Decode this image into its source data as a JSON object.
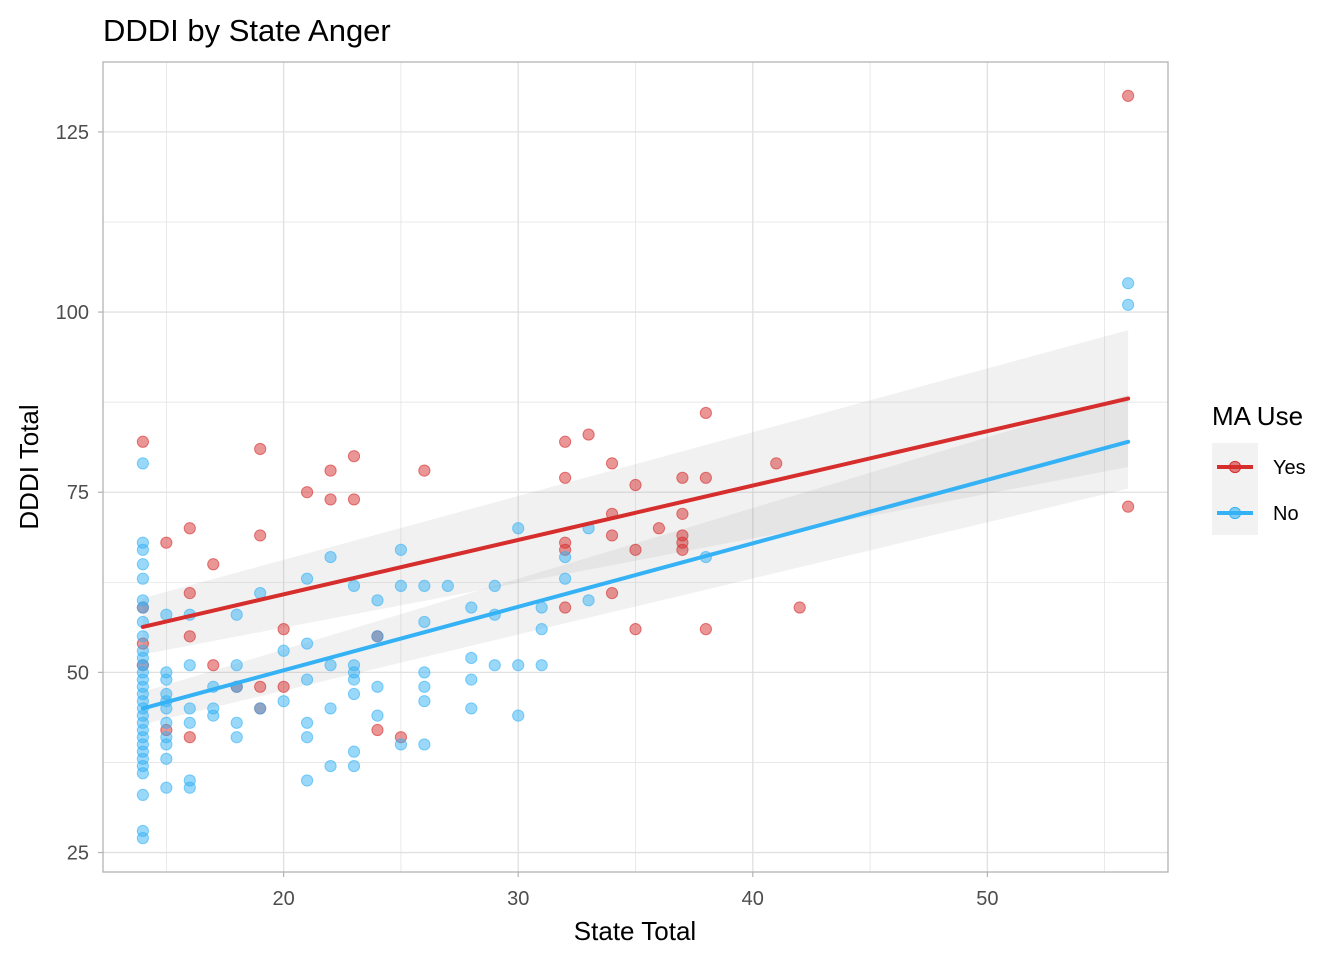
{
  "chart_data": {
    "type": "scatter",
    "title": "DDDI by State Anger",
    "xlabel": "State Total",
    "ylabel": "DDDI Total",
    "xlim": [
      12.3,
      57.7
    ],
    "ylim": [
      22.3,
      134.7
    ],
    "x_ticks": [
      20,
      30,
      40,
      50
    ],
    "y_ticks": [
      25,
      50,
      75,
      100,
      125
    ],
    "grid": true,
    "legend": {
      "title": "MA Use",
      "position": "right"
    },
    "series": [
      {
        "name": "Yes",
        "color": "#D62D2D",
        "fit_line": {
          "x": [
            14,
            56
          ],
          "y": [
            56.3,
            88.0
          ]
        },
        "ci_band": {
          "x": [
            14,
            56
          ],
          "lower": [
            52.5,
            78.5
          ],
          "upper": [
            60.3,
            97.5
          ]
        },
        "points": [
          [
            14,
            82
          ],
          [
            14,
            59
          ],
          [
            14,
            54
          ],
          [
            14,
            51
          ],
          [
            15,
            68
          ],
          [
            15,
            42
          ],
          [
            16,
            70
          ],
          [
            16,
            61
          ],
          [
            16,
            55
          ],
          [
            16,
            41
          ],
          [
            17,
            65
          ],
          [
            17,
            51
          ],
          [
            18,
            48
          ],
          [
            19,
            81
          ],
          [
            19,
            69
          ],
          [
            19,
            48
          ],
          [
            19,
            45
          ],
          [
            20,
            56
          ],
          [
            20,
            48
          ],
          [
            21,
            75
          ],
          [
            22,
            78
          ],
          [
            22,
            74
          ],
          [
            23,
            80
          ],
          [
            23,
            74
          ],
          [
            24,
            55
          ],
          [
            24,
            42
          ],
          [
            25,
            41
          ],
          [
            26,
            78
          ],
          [
            32,
            82
          ],
          [
            32,
            77
          ],
          [
            32,
            68
          ],
          [
            32,
            67
          ],
          [
            32,
            59
          ],
          [
            33,
            83
          ],
          [
            34,
            79
          ],
          [
            34,
            72
          ],
          [
            34,
            69
          ],
          [
            34,
            61
          ],
          [
            35,
            76
          ],
          [
            35,
            67
          ],
          [
            35,
            56
          ],
          [
            36,
            70
          ],
          [
            37,
            77
          ],
          [
            37,
            72
          ],
          [
            37,
            69
          ],
          [
            37,
            68
          ],
          [
            37,
            67
          ],
          [
            38,
            86
          ],
          [
            38,
            77
          ],
          [
            38,
            56
          ],
          [
            41,
            79
          ],
          [
            42,
            59
          ],
          [
            56,
            130
          ],
          [
            56,
            73
          ]
        ]
      },
      {
        "name": "No",
        "color": "#35B2F5",
        "fit_line": {
          "x": [
            14,
            56
          ],
          "y": [
            45.0,
            82.0
          ]
        },
        "ci_band": {
          "x": [
            14,
            56
          ],
          "lower": [
            42.8,
            75.5
          ],
          "upper": [
            47.3,
            88.5
          ]
        },
        "points": [
          [
            14,
            79
          ],
          [
            14,
            68
          ],
          [
            14,
            67
          ],
          [
            14,
            65
          ],
          [
            14,
            63
          ],
          [
            14,
            60
          ],
          [
            14,
            59
          ],
          [
            14,
            57
          ],
          [
            14,
            55
          ],
          [
            14,
            53
          ],
          [
            14,
            52
          ],
          [
            14,
            51
          ],
          [
            14,
            50
          ],
          [
            14,
            49
          ],
          [
            14,
            48
          ],
          [
            14,
            47
          ],
          [
            14,
            46
          ],
          [
            14,
            45
          ],
          [
            14,
            44
          ],
          [
            14,
            43
          ],
          [
            14,
            42
          ],
          [
            14,
            41
          ],
          [
            14,
            40
          ],
          [
            14,
            39
          ],
          [
            14,
            38
          ],
          [
            14,
            37
          ],
          [
            14,
            36
          ],
          [
            14,
            33
          ],
          [
            14,
            28
          ],
          [
            14,
            27
          ],
          [
            15,
            58
          ],
          [
            15,
            50
          ],
          [
            15,
            49
          ],
          [
            15,
            47
          ],
          [
            15,
            46
          ],
          [
            15,
            45
          ],
          [
            15,
            43
          ],
          [
            15,
            41
          ],
          [
            15,
            40
          ],
          [
            15,
            38
          ],
          [
            15,
            34
          ],
          [
            16,
            58
          ],
          [
            16,
            51
          ],
          [
            16,
            45
          ],
          [
            16,
            43
          ],
          [
            16,
            35
          ],
          [
            16,
            34
          ],
          [
            17,
            48
          ],
          [
            17,
            45
          ],
          [
            17,
            44
          ],
          [
            18,
            58
          ],
          [
            18,
            51
          ],
          [
            18,
            48
          ],
          [
            18,
            43
          ],
          [
            18,
            41
          ],
          [
            19,
            61
          ],
          [
            19,
            45
          ],
          [
            20,
            53
          ],
          [
            20,
            46
          ],
          [
            21,
            63
          ],
          [
            21,
            54
          ],
          [
            21,
            49
          ],
          [
            21,
            43
          ],
          [
            21,
            41
          ],
          [
            21,
            35
          ],
          [
            22,
            66
          ],
          [
            22,
            51
          ],
          [
            22,
            45
          ],
          [
            22,
            37
          ],
          [
            23,
            62
          ],
          [
            23,
            51
          ],
          [
            23,
            50
          ],
          [
            23,
            49
          ],
          [
            23,
            47
          ],
          [
            23,
            39
          ],
          [
            23,
            37
          ],
          [
            24,
            60
          ],
          [
            24,
            55
          ],
          [
            24,
            48
          ],
          [
            24,
            44
          ],
          [
            25,
            67
          ],
          [
            25,
            62
          ],
          [
            25,
            40
          ],
          [
            26,
            62
          ],
          [
            26,
            57
          ],
          [
            26,
            50
          ],
          [
            26,
            48
          ],
          [
            26,
            46
          ],
          [
            26,
            40
          ],
          [
            27,
            62
          ],
          [
            28,
            59
          ],
          [
            28,
            52
          ],
          [
            28,
            49
          ],
          [
            28,
            45
          ],
          [
            29,
            62
          ],
          [
            29,
            58
          ],
          [
            29,
            51
          ],
          [
            30,
            70
          ],
          [
            30,
            51
          ],
          [
            30,
            44
          ],
          [
            31,
            59
          ],
          [
            31,
            56
          ],
          [
            31,
            51
          ],
          [
            32,
            66
          ],
          [
            32,
            63
          ],
          [
            33,
            70
          ],
          [
            33,
            60
          ],
          [
            38,
            66
          ],
          [
            56,
            104
          ],
          [
            56,
            101
          ]
        ]
      }
    ]
  }
}
